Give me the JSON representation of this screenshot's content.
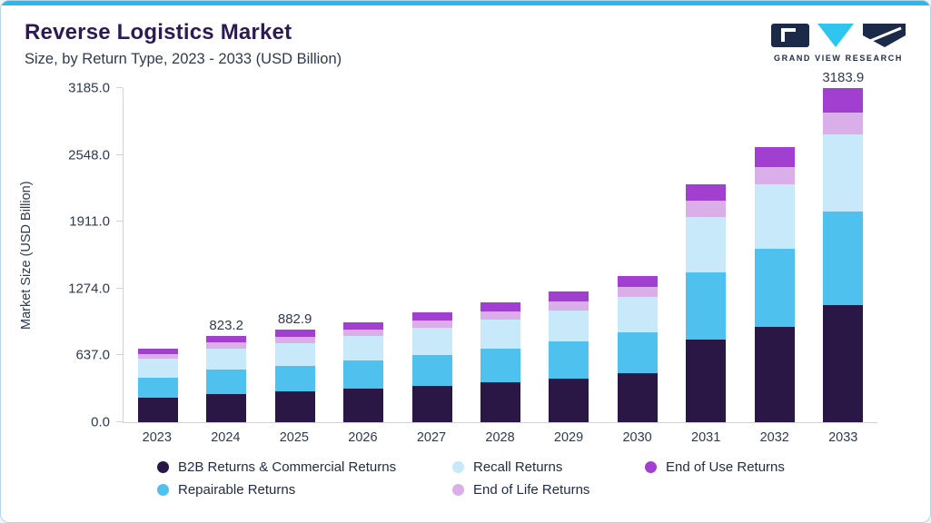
{
  "header": {
    "title": "Reverse Logistics Market",
    "subtitle": "Size, by Return Type, 2023 - 2033 (USD Billion)",
    "brand": "GRAND VIEW RESEARCH"
  },
  "colors": {
    "accent_top": "#2bb7ea",
    "card_border": "#b5d5e8",
    "title": "#2d1a53",
    "text": "#2e3a50",
    "axis_line": "#c9d5de",
    "logo_navy": "#1c2a4a",
    "logo_cyan": "#2ec6f0"
  },
  "chart_data": {
    "type": "bar",
    "stacked": true,
    "title": "Reverse Logistics Market",
    "subtitle": "Size, by Return Type, 2023 - 2033 (USD Billion)",
    "xlabel": "",
    "ylabel": "Market Size (USD Billion)",
    "ylim": [
      0,
      3185
    ],
    "ytick_labels": [
      "0.0",
      "637.0",
      "1274.0",
      "1911.0",
      "2548.0",
      "3185.0"
    ],
    "grid": false,
    "legend_position": "bottom",
    "categories": [
      "2023",
      "2024",
      "2025",
      "2026",
      "2027",
      "2028",
      "2029",
      "2030",
      "2031",
      "2032",
      "2033"
    ],
    "series": [
      {
        "name": "B2B Returns & Commercial Returns",
        "color": "#2a1745",
        "values": [
          230,
          272,
          293,
          318,
          350,
          383,
          419,
          469,
          790,
          910,
          1115
        ]
      },
      {
        "name": "Repairable Returns",
        "color": "#4ec1ef",
        "values": [
          198,
          231,
          248,
          268,
          293,
          319,
          348,
          389,
          640,
          740,
          890
        ]
      },
      {
        "name": "Recall Returns",
        "color": "#c7e9fa",
        "values": [
          174,
          202,
          216,
          233,
          254,
          276,
          301,
          335,
          530,
          615,
          735
        ]
      },
      {
        "name": "End of Life Returns",
        "color": "#d9aee9",
        "values": [
          48,
          57,
          61,
          66,
          72,
          79,
          86,
          96,
          150,
          170,
          215
        ]
      },
      {
        "name": "End of Use Returns",
        "color": "#a13fd1",
        "values": [
          50,
          61.2,
          64.9,
          70,
          76,
          83,
          91,
          101,
          160,
          185,
          228.9
        ]
      }
    ],
    "totals": [
      700,
      823.2,
      882.9,
      955,
      1045,
      1140,
      1245,
      1390,
      2270,
      2620,
      3183.9
    ],
    "bar_value_labels": [
      "",
      "823.2",
      "882.9",
      "",
      "",
      "",
      "",
      "",
      "",
      "",
      "3183.9"
    ],
    "legend_rows": [
      [
        "B2B Returns & Commercial Returns",
        "Recall Returns",
        "End of Use Returns"
      ],
      [
        "Repairable Returns",
        "End of Life Returns"
      ]
    ]
  }
}
